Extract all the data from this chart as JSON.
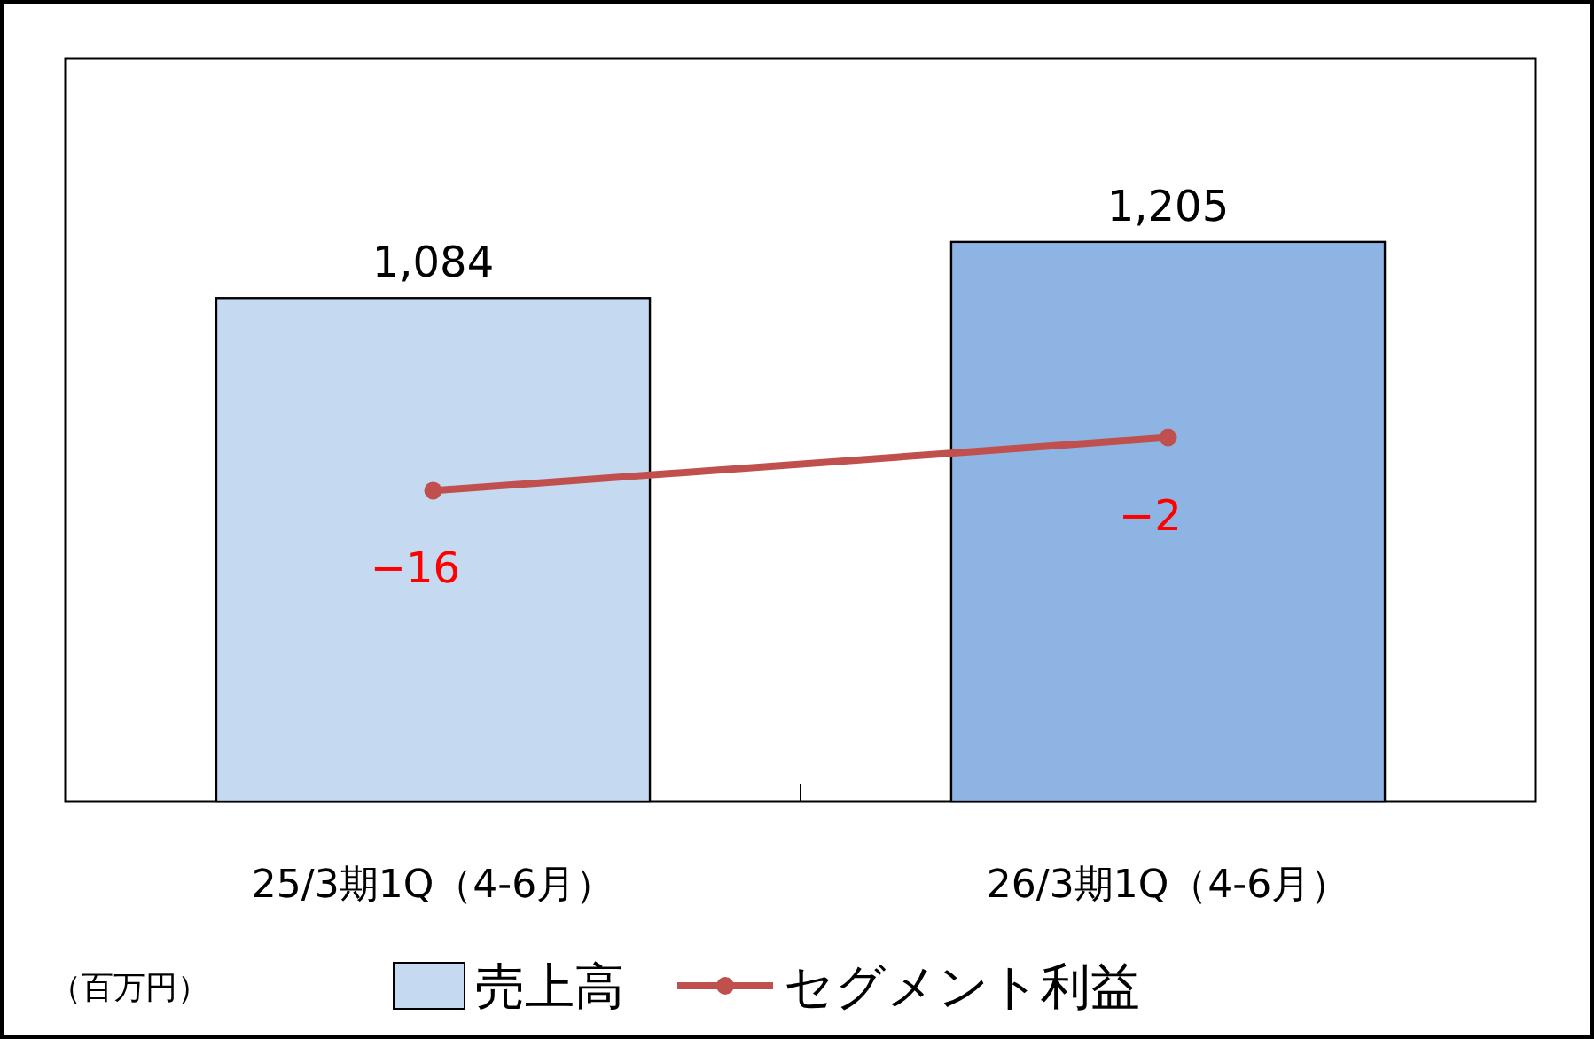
{
  "chart_data": {
    "type": "bar",
    "categories": [
      "25/3期1Q（4-6月）",
      "26/3期1Q（4-6月）"
    ],
    "series": [
      {
        "name": "売上高",
        "colors": [
          "#c5d9f1",
          "#8eb4e3"
        ],
        "values": [
          1084,
          1205
        ],
        "value_labels": [
          "1,084",
          "1,205"
        ]
      },
      {
        "name": "セグメント利益",
        "type": "line",
        "axis": "y2",
        "color": "#c0504d",
        "values": [
          -16,
          -2
        ],
        "value_labels": [
          "−16",
          "−2"
        ]
      }
    ],
    "ylim": [
      0,
      1600
    ],
    "y2lim": [
      -98,
      98
    ],
    "marker": "circle",
    "legend": "bottom",
    "annotations": [
      "（百万円）"
    ]
  }
}
